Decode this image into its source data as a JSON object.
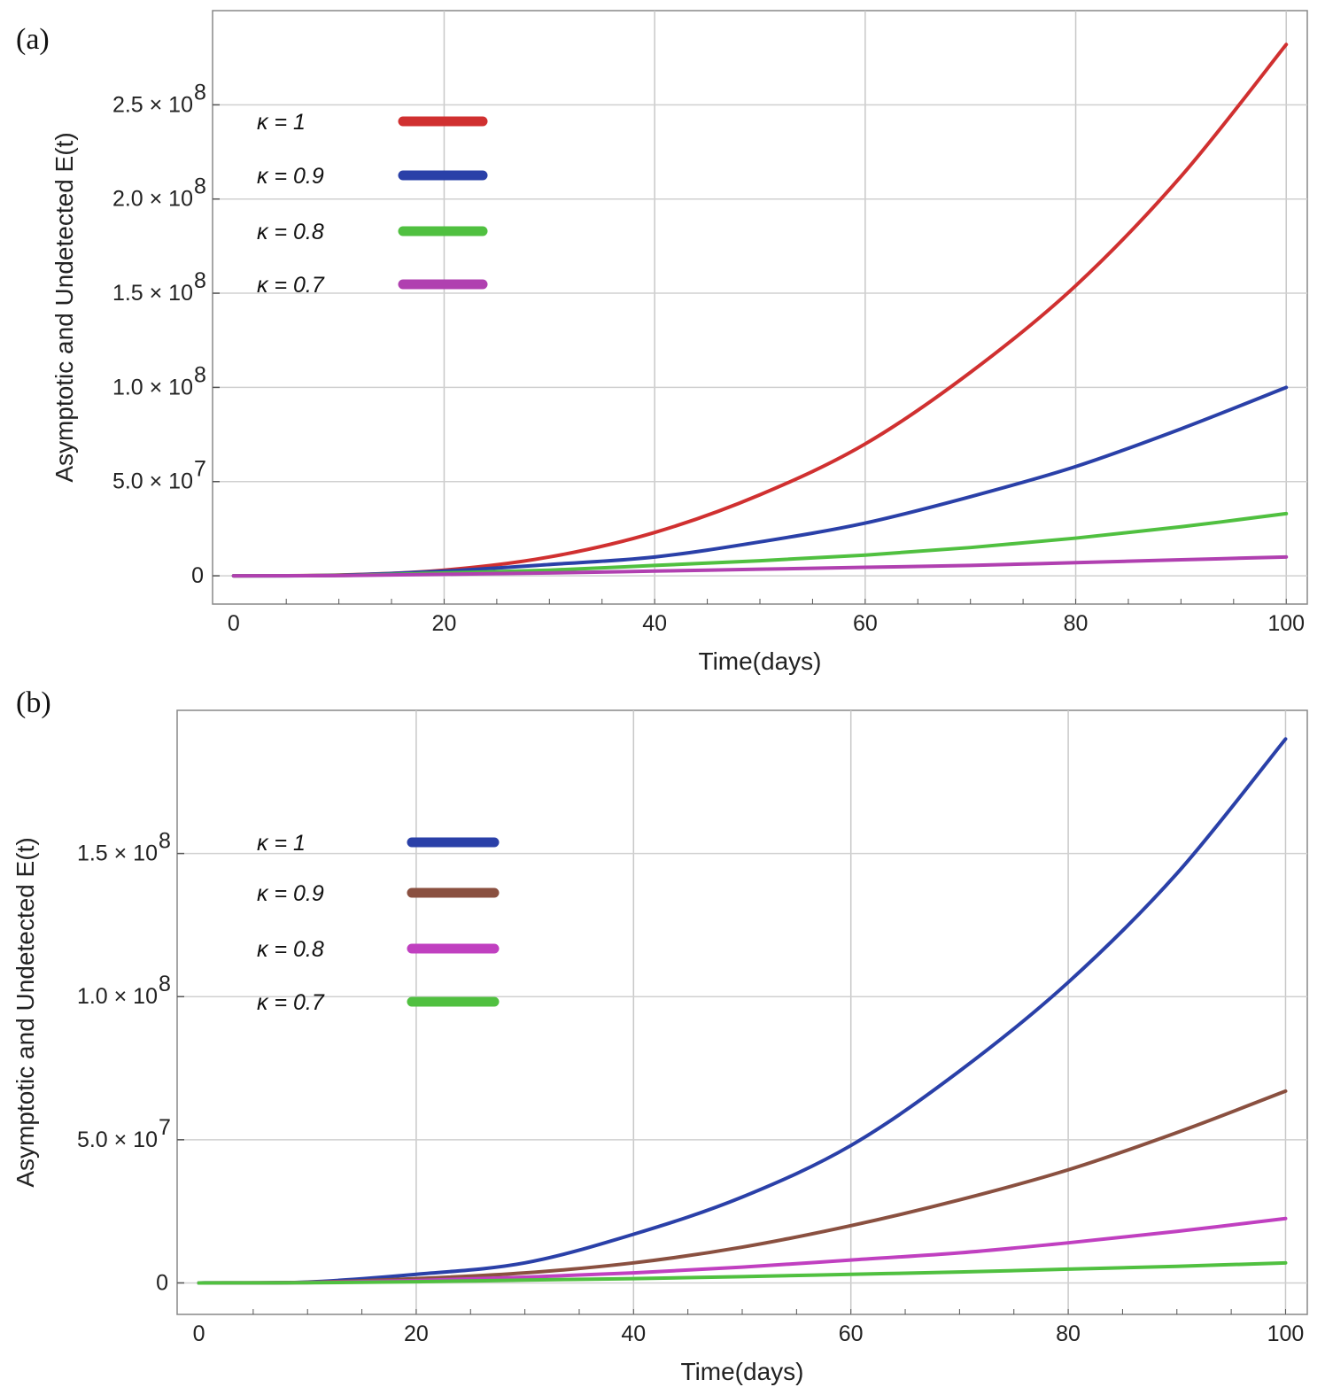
{
  "panels": {
    "a": {
      "label": "(a)"
    },
    "b": {
      "label": "(b)"
    }
  },
  "chart_data": [
    {
      "type": "line",
      "panel": "(a)",
      "title": "",
      "xlabel": "Time(days)",
      "ylabel": "Asymptotic and Undetected E(t)",
      "xlim": [
        -2,
        102
      ],
      "ylim": [
        -15000000,
        300000000
      ],
      "xticks": [
        0,
        20,
        40,
        60,
        80,
        100
      ],
      "yticks": [
        {
          "value": 0,
          "mantissa": "0",
          "exp": ""
        },
        {
          "value": 50000000,
          "mantissa": "5.0 × 10",
          "exp": "7"
        },
        {
          "value": 100000000,
          "mantissa": "1.0 × 10",
          "exp": "8"
        },
        {
          "value": 150000000,
          "mantissa": "1.5 × 10",
          "exp": "8"
        },
        {
          "value": 200000000,
          "mantissa": "2.0 × 10",
          "exp": "8"
        },
        {
          "value": 250000000,
          "mantissa": "2.5 × 10",
          "exp": "8"
        }
      ],
      "grid": true,
      "legend_position": "top-left",
      "series": [
        {
          "name": "κ = 1",
          "color": "#d03030",
          "x": [
            0,
            10,
            20,
            30,
            40,
            50,
            60,
            70,
            80,
            90,
            100
          ],
          "y": [
            0,
            400000,
            3000000,
            10000000,
            23000000,
            43000000,
            70000000,
            108000000,
            154000000,
            212000000,
            282000000
          ]
        },
        {
          "name": "κ = 0.9",
          "color": "#2a40a8",
          "x": [
            0,
            10,
            20,
            30,
            40,
            50,
            60,
            70,
            80,
            90,
            100
          ],
          "y": [
            0,
            300000,
            2500000,
            6000000,
            10000000,
            18000000,
            28000000,
            42000000,
            58000000,
            78000000,
            100000000
          ]
        },
        {
          "name": "κ = 0.8",
          "color": "#50c040",
          "x": [
            0,
            10,
            20,
            30,
            40,
            50,
            60,
            70,
            80,
            90,
            100
          ],
          "y": [
            0,
            200000,
            1500000,
            3000000,
            5500000,
            8000000,
            11000000,
            15000000,
            20000000,
            26000000,
            33000000
          ]
        },
        {
          "name": "κ = 0.7",
          "color": "#b040b0",
          "x": [
            0,
            10,
            20,
            30,
            40,
            50,
            60,
            70,
            80,
            90,
            100
          ],
          "y": [
            0,
            100000,
            800000,
            1500000,
            2500000,
            3500000,
            4500000,
            5500000,
            7000000,
            8500000,
            10000000
          ]
        }
      ]
    },
    {
      "type": "line",
      "panel": "(b)",
      "title": "",
      "xlabel": "Time(days)",
      "ylabel": "Asymptotic and Undetected E(t)",
      "xlim": [
        -2,
        102
      ],
      "ylim": [
        -11000000,
        200000000
      ],
      "xticks": [
        0,
        20,
        40,
        60,
        80,
        100
      ],
      "yticks": [
        {
          "value": 0,
          "mantissa": "0",
          "exp": ""
        },
        {
          "value": 50000000,
          "mantissa": "5.0 × 10",
          "exp": "7"
        },
        {
          "value": 100000000,
          "mantissa": "1.0 × 10",
          "exp": "8"
        },
        {
          "value": 150000000,
          "mantissa": "1.5 × 10",
          "exp": "8"
        }
      ],
      "grid": true,
      "legend_position": "top-left",
      "series": [
        {
          "name": "κ = 1",
          "color": "#2a40a8",
          "x": [
            0,
            10,
            20,
            30,
            40,
            50,
            60,
            70,
            80,
            90,
            100
          ],
          "y": [
            0,
            300000,
            3000000,
            7000000,
            17000000,
            30000000,
            48000000,
            74000000,
            105000000,
            143000000,
            190000000
          ]
        },
        {
          "name": "κ = 0.9",
          "color": "#8a5040",
          "x": [
            0,
            10,
            20,
            30,
            40,
            50,
            60,
            70,
            80,
            90,
            100
          ],
          "y": [
            0,
            200000,
            1500000,
            3500000,
            7000000,
            12500000,
            20000000,
            29000000,
            39500000,
            52500000,
            67000000
          ]
        },
        {
          "name": "κ = 0.8",
          "color": "#c040c0",
          "x": [
            0,
            10,
            20,
            30,
            40,
            50,
            60,
            70,
            80,
            90,
            100
          ],
          "y": [
            0,
            100000,
            800000,
            2000000,
            3500000,
            5500000,
            8000000,
            10500000,
            14000000,
            18000000,
            22500000
          ]
        },
        {
          "name": "κ = 0.7",
          "color": "#50c040",
          "x": [
            0,
            10,
            20,
            30,
            40,
            50,
            60,
            70,
            80,
            90,
            100
          ],
          "y": [
            0,
            50000,
            400000,
            1000000,
            1500000,
            2200000,
            3000000,
            3800000,
            4800000,
            5800000,
            7000000
          ]
        }
      ]
    }
  ]
}
